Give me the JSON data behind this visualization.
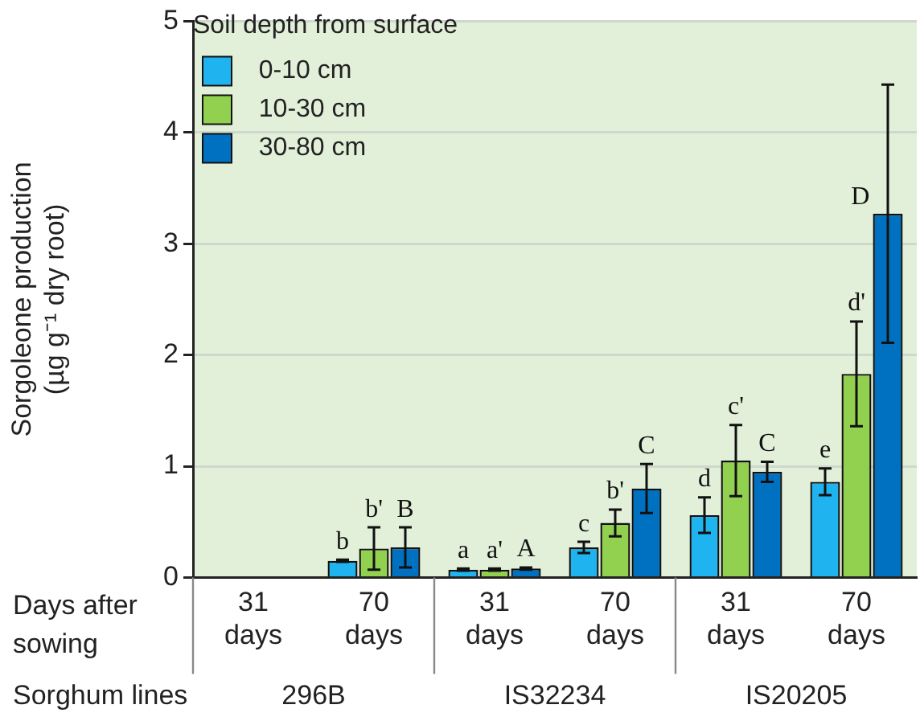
{
  "chart_data": {
    "type": "bar",
    "ylabel": "Sorgoleone production\n(µg g⁻¹ dry root)",
    "xlabel": "Days after sowing",
    "legend_title": "Soil depth from surface",
    "categories": [
      "31 days",
      "70 days",
      "31 days",
      "70 days",
      "31 days",
      "70 days"
    ],
    "series": [
      {
        "name": "0-10 cm",
        "color": "#1fb4ef",
        "values": [
          null,
          0.15,
          0.07,
          0.27,
          0.56,
          0.86
        ],
        "errors": [
          null,
          0.01,
          0.01,
          0.05,
          0.16,
          0.12
        ],
        "value_labels": [
          null,
          "b",
          "a",
          "c",
          "d",
          "e"
        ]
      },
      {
        "name": "10-30 cm",
        "color": "#92d050",
        "values": [
          null,
          0.26,
          0.07,
          0.49,
          1.05,
          1.83
        ],
        "errors": [
          null,
          0.19,
          0.01,
          0.12,
          0.32,
          0.47
        ],
        "value_labels": [
          null,
          "b'",
          "a'",
          "b'",
          "c'",
          "d'"
        ]
      },
      {
        "name": "30-80 cm",
        "color": "#0070c0",
        "values": [
          null,
          0.27,
          0.08,
          0.8,
          0.95,
          3.27
        ],
        "errors": [
          null,
          0.18,
          0.01,
          0.22,
          0.09,
          1.16
        ],
        "value_labels": [
          null,
          "B",
          "A",
          "C",
          "C",
          "D"
        ]
      }
    ],
    "annotations": [
      "Sorghum lines",
      "296B",
      "IS32234",
      "IS20205"
    ],
    "ylim": [
      0,
      5
    ],
    "yticks": [
      0,
      1,
      2,
      3,
      4,
      5
    ],
    "grid": "y",
    "legend": "top left"
  }
}
